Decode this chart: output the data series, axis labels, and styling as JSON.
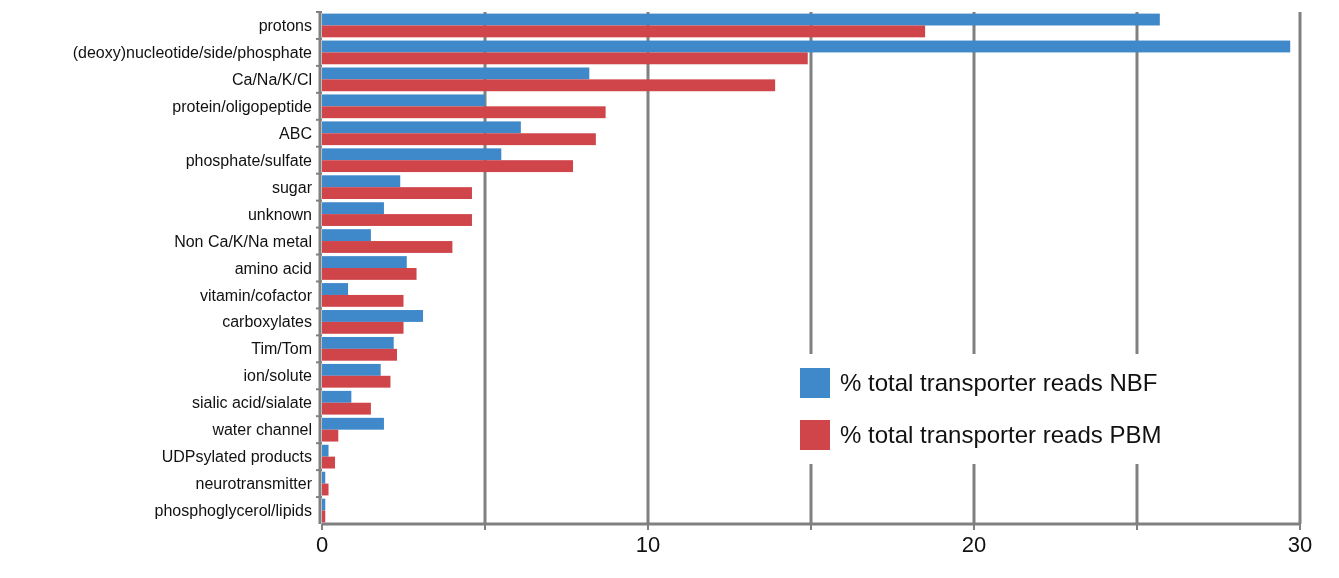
{
  "chart_data": {
    "type": "bar",
    "orientation": "horizontal",
    "categories": [
      "protons",
      "(deoxy)nucleotide/side/phosphate",
      "Ca/Na/K/Cl",
      "protein/oligopeptide",
      "ABC",
      "phosphate/sulfate",
      "sugar",
      "unknown",
      "Non Ca/K/Na metal",
      "amino acid",
      "vitamin/cofactor",
      "carboxylates",
      "Tim/Tom",
      "ion/solute",
      "sialic acid/sialate",
      "water channel",
      "UDPsylated products",
      "neurotransmitter",
      "phosphoglycerol/lipids"
    ],
    "series": [
      {
        "name": "% total transporter reads NBF",
        "color": "#3f88c9",
        "values": [
          25.7,
          29.7,
          8.2,
          5.0,
          6.1,
          5.5,
          2.4,
          1.9,
          1.5,
          2.6,
          0.8,
          3.1,
          2.2,
          1.8,
          0.9,
          1.9,
          0.2,
          0.1,
          0.1
        ]
      },
      {
        "name": "% total transporter reads PBM",
        "color": "#cf454a",
        "values": [
          18.5,
          14.9,
          13.9,
          8.7,
          8.4,
          7.7,
          4.6,
          4.6,
          4.0,
          2.9,
          2.5,
          2.5,
          2.3,
          2.1,
          1.5,
          0.5,
          0.4,
          0.2,
          0.1
        ]
      }
    ],
    "xlim": [
      0,
      30
    ],
    "xticks": [
      0,
      {
        "value": 5,
        "label": null
      },
      10,
      {
        "value": 15,
        "label": null
      },
      20,
      {
        "value": 25,
        "label": null
      },
      30
    ],
    "grid": "x",
    "legend": "bottom right"
  }
}
